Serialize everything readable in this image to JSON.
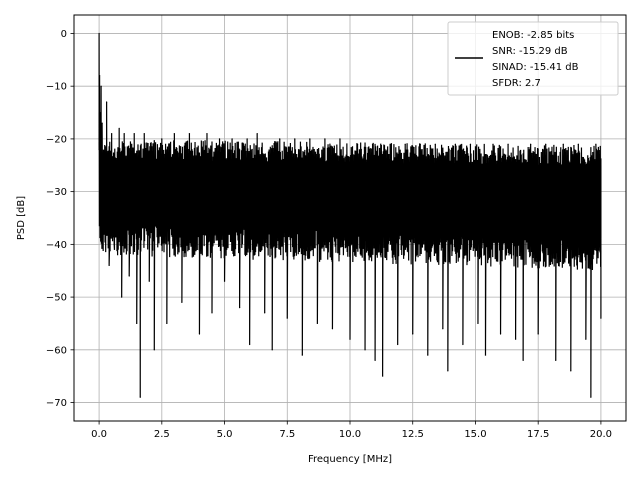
{
  "chart_data": {
    "type": "line",
    "xlabel": "Frequency [MHz]",
    "ylabel": "PSD [dB]",
    "xlim": [
      -1.0,
      21.0
    ],
    "ylim": [
      -73.5,
      3.5
    ],
    "xticks": [
      0.0,
      2.5,
      5.0,
      7.5,
      10.0,
      12.5,
      15.0,
      17.5,
      20.0
    ],
    "xtick_labels": [
      "0.0",
      "2.5",
      "5.0",
      "7.5",
      "10.0",
      "12.5",
      "15.0",
      "17.5",
      "20.0"
    ],
    "yticks": [
      0,
      -10,
      -20,
      -30,
      -40,
      -50,
      -60,
      -70
    ],
    "ytick_labels": [
      "0",
      "−10",
      "−20",
      "−30",
      "−40",
      "−50",
      "−60",
      "−70"
    ],
    "grid": true,
    "legend_position": "top-right",
    "legend": [
      "ENOB: -2.85 bits",
      "SNR: -15.29 dB",
      "SINAD: -15.41 dB",
      "SFDR: 2.7"
    ],
    "series": [
      {
        "color": "#000000",
        "noise_floor_band_db": [
          -42,
          -20
        ],
        "points": [
          [
            0.0,
            0.0
          ],
          [
            0.02,
            -8
          ],
          [
            0.05,
            -15
          ],
          [
            0.08,
            -10
          ],
          [
            0.12,
            -17
          ],
          [
            0.2,
            -35
          ],
          [
            0.3,
            -13
          ],
          [
            0.4,
            -44
          ],
          [
            0.5,
            -19
          ],
          [
            0.6,
            -40
          ],
          [
            0.8,
            -18
          ],
          [
            0.9,
            -50
          ],
          [
            1.0,
            -19
          ],
          [
            1.2,
            -46
          ],
          [
            1.4,
            -19
          ],
          [
            1.5,
            -55
          ],
          [
            1.64,
            -69
          ],
          [
            1.8,
            -19
          ],
          [
            2.0,
            -47
          ],
          [
            2.2,
            -60
          ],
          [
            2.5,
            -20
          ],
          [
            2.7,
            -55
          ],
          [
            3.0,
            -19
          ],
          [
            3.3,
            -51
          ],
          [
            3.6,
            -19
          ],
          [
            4.0,
            -57
          ],
          [
            4.3,
            -19
          ],
          [
            4.5,
            -53
          ],
          [
            4.8,
            -20
          ],
          [
            5.0,
            -47
          ],
          [
            5.3,
            -20
          ],
          [
            5.6,
            -52
          ],
          [
            5.9,
            -20
          ],
          [
            6.0,
            -59
          ],
          [
            6.3,
            -19
          ],
          [
            6.6,
            -53
          ],
          [
            6.9,
            -60
          ],
          [
            7.2,
            -20
          ],
          [
            7.5,
            -54
          ],
          [
            7.8,
            -20
          ],
          [
            8.1,
            -61
          ],
          [
            8.4,
            -20
          ],
          [
            8.7,
            -55
          ],
          [
            9.0,
            -20
          ],
          [
            9.3,
            -56
          ],
          [
            9.6,
            -20
          ],
          [
            10.0,
            -58
          ],
          [
            10.3,
            -21
          ],
          [
            10.6,
            -60
          ],
          [
            10.9,
            -21
          ],
          [
            11.0,
            -62
          ],
          [
            11.3,
            -65
          ],
          [
            11.6,
            -21
          ],
          [
            11.9,
            -59
          ],
          [
            12.2,
            -21
          ],
          [
            12.5,
            -57
          ],
          [
            12.8,
            -21
          ],
          [
            13.1,
            -61
          ],
          [
            13.4,
            -21
          ],
          [
            13.7,
            -56
          ],
          [
            13.9,
            -64
          ],
          [
            14.2,
            -21
          ],
          [
            14.5,
            -59
          ],
          [
            14.8,
            -21
          ],
          [
            15.1,
            -55
          ],
          [
            15.4,
            -61
          ],
          [
            15.7,
            -21
          ],
          [
            16.0,
            -57
          ],
          [
            16.3,
            -21
          ],
          [
            16.6,
            -58
          ],
          [
            16.9,
            -62
          ],
          [
            17.2,
            -21
          ],
          [
            17.5,
            -57
          ],
          [
            17.8,
            -21
          ],
          [
            18.2,
            -62
          ],
          [
            18.5,
            -21
          ],
          [
            18.8,
            -64
          ],
          [
            19.1,
            -21
          ],
          [
            19.4,
            -58
          ],
          [
            19.6,
            -69
          ],
          [
            19.8,
            -21
          ],
          [
            20.0,
            -54
          ]
        ]
      }
    ]
  }
}
